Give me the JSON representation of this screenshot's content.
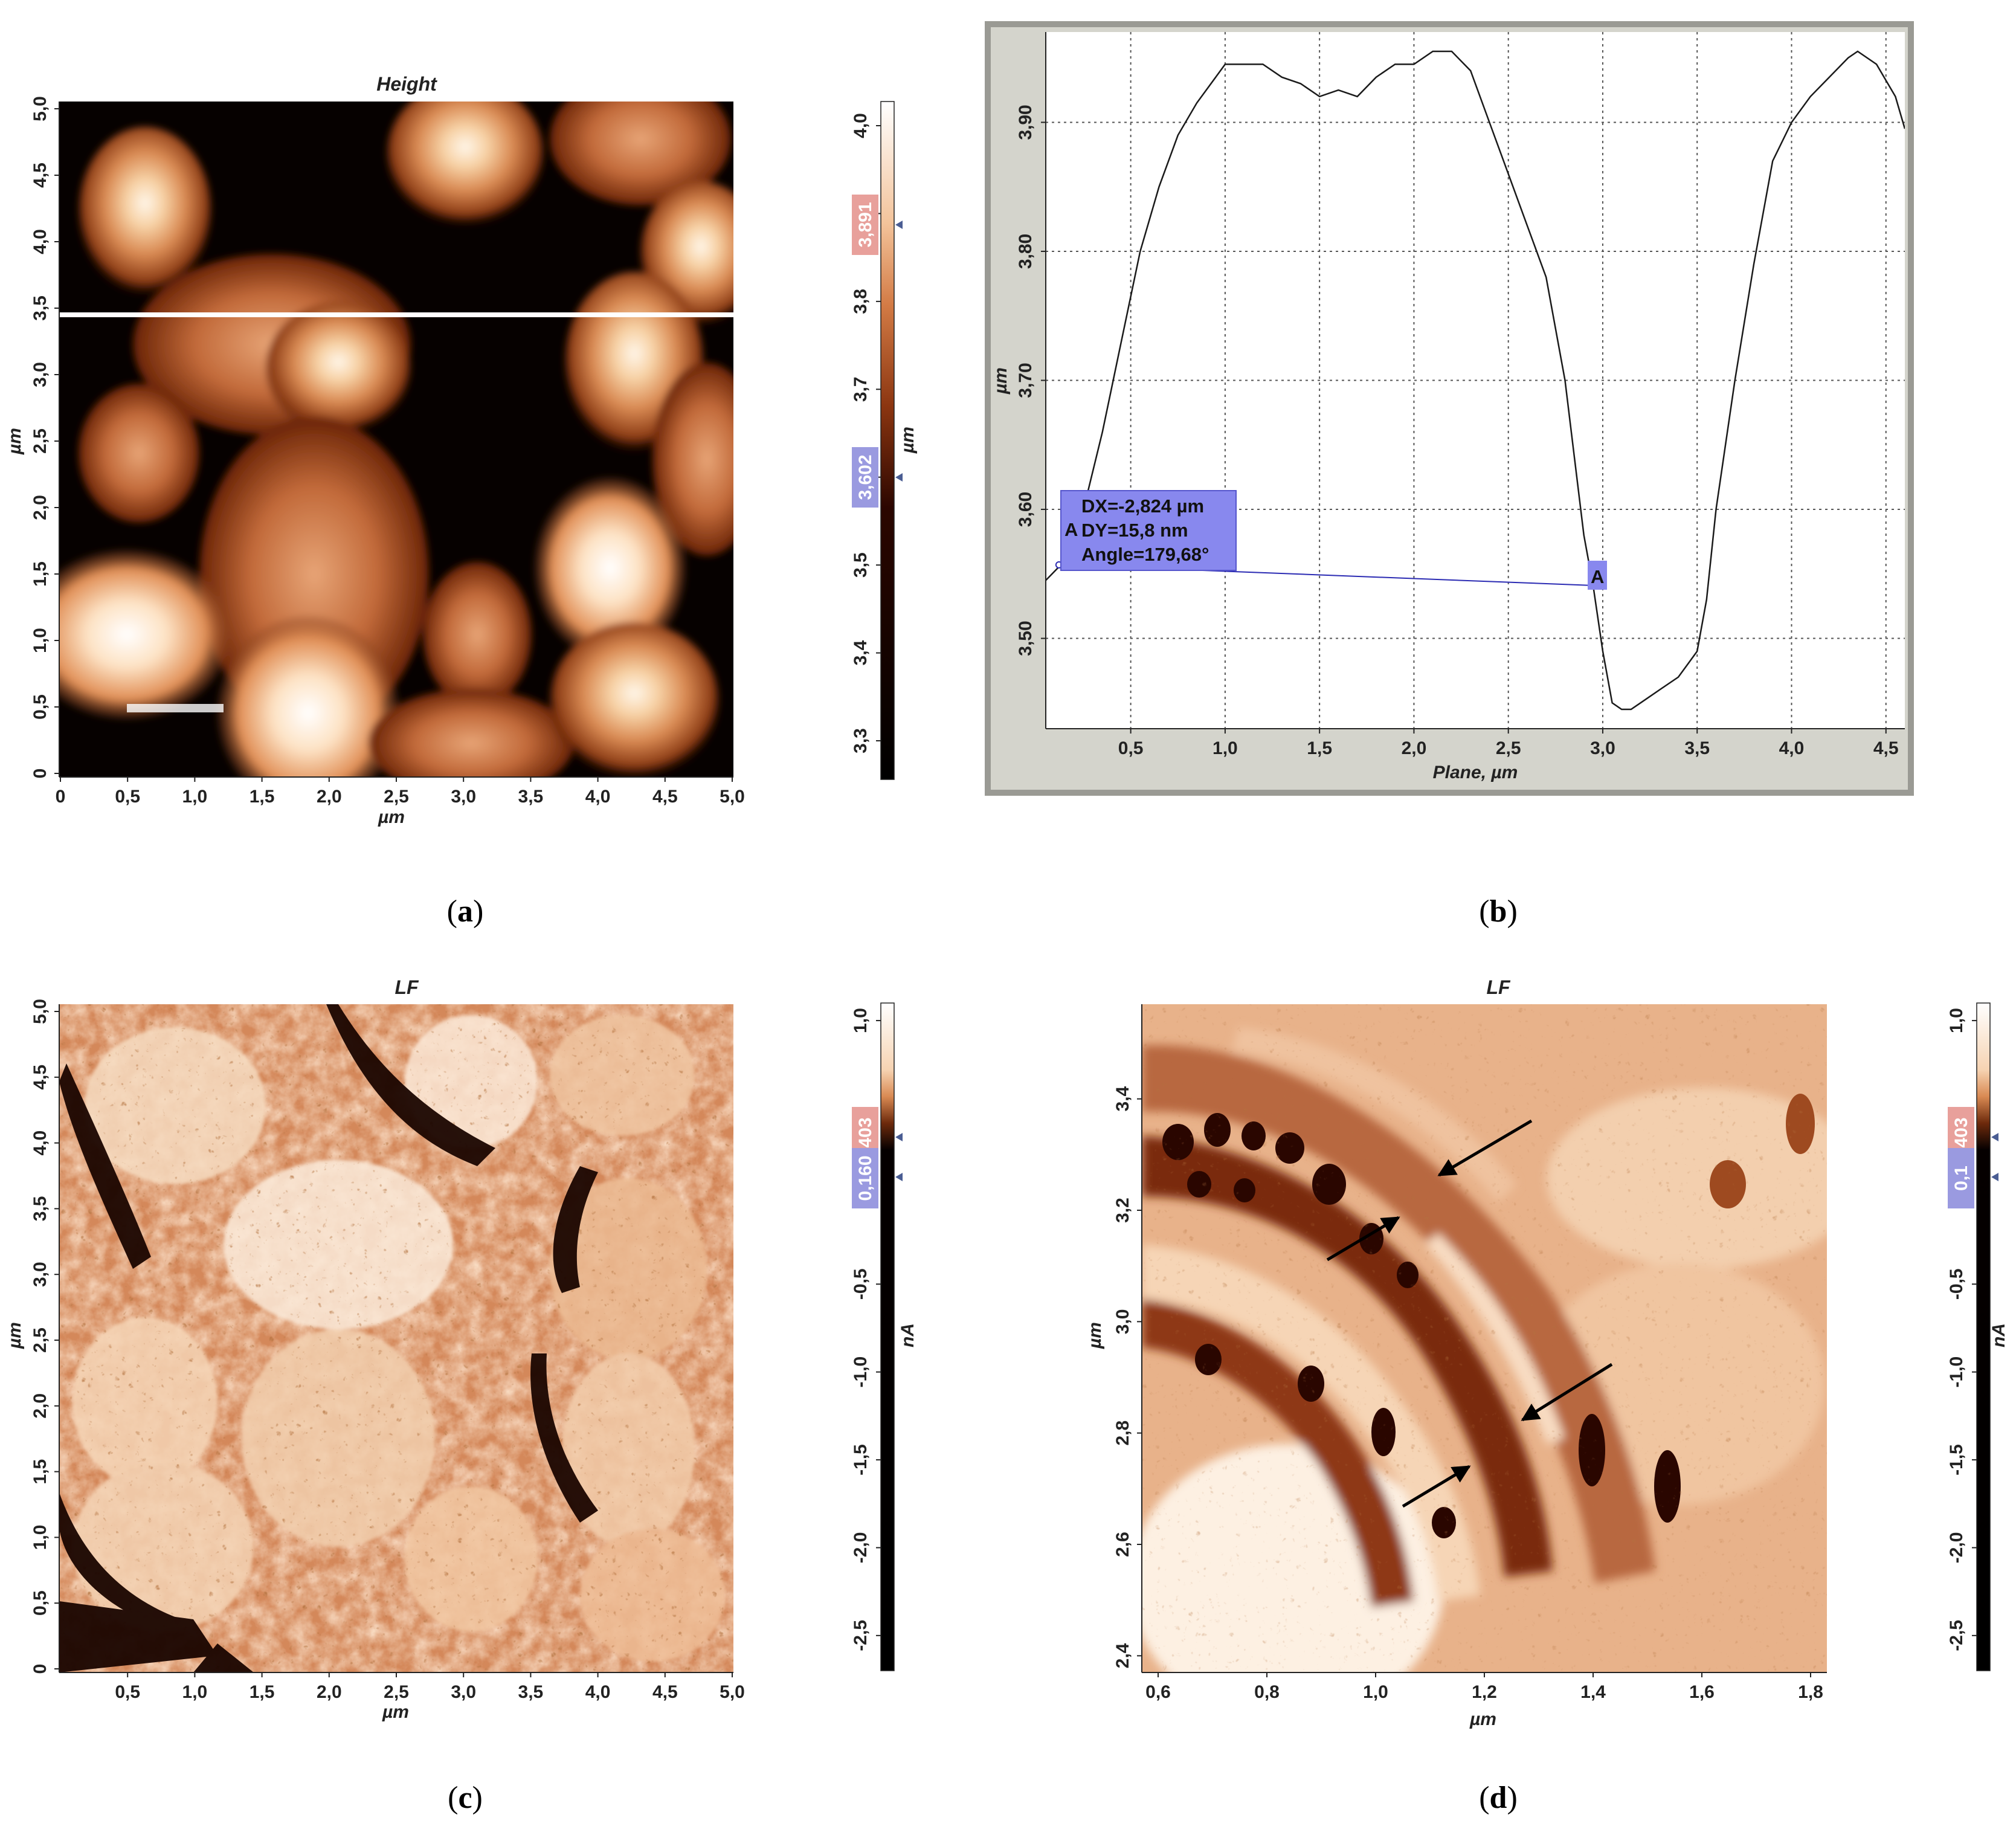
{
  "panel_a": {
    "title": "Height",
    "x_unit": "µm",
    "y_unit": "µm",
    "x_ticks": [
      "0",
      "0,5",
      "1,0",
      "1,5",
      "2,0",
      "2,5",
      "3,0",
      "3,5",
      "4,0",
      "4,5",
      "5,0"
    ],
    "y_ticks": [
      "0",
      "0,5",
      "1,0",
      "1,5",
      "2,0",
      "2,5",
      "3,0",
      "3,5",
      "4,0",
      "4,5",
      "5,0"
    ],
    "colorbar_ticks": [
      "3,3",
      "3,4",
      "3,5",
      "3,6",
      "3,7",
      "3,8",
      "3,9",
      "4,0"
    ],
    "colorbar_unit": "µm",
    "marker_high": "3,891",
    "marker_low": "3,602",
    "profile_line_y": 3.45,
    "caption": "a"
  },
  "panel_b": {
    "xlabel": "Plane, µm",
    "ylabel": "µm",
    "x_ticks": [
      "0,5",
      "1,0",
      "1,5",
      "2,0",
      "2,5",
      "3,0",
      "3,5",
      "4,0",
      "4,5"
    ],
    "y_ticks": [
      "3,50",
      "3,60",
      "3,70",
      "3,80",
      "3,90"
    ],
    "measure": {
      "dx": "DX=-2,824 µm",
      "dy": "DY=15,8 nm",
      "angle": "Angle=179,68°",
      "point_label": "A",
      "x1": 0.12,
      "y1": 3.557,
      "x2": 2.95,
      "y2": 3.541
    },
    "caption": "b"
  },
  "panel_c": {
    "title": "LF",
    "x_unit": "µm",
    "y_unit": "µm",
    "x_ticks": [
      "0,5",
      "1,0",
      "1,5",
      "2,0",
      "2,5",
      "3,0",
      "3,5",
      "4,0",
      "4,5",
      "5,0"
    ],
    "y_ticks": [
      "0",
      "0,5",
      "1,0",
      "1,5",
      "2,0",
      "2,5",
      "3,0",
      "3,5",
      "4,0",
      "4,5",
      "5,0"
    ],
    "colorbar_ticks": [
      "-2,5",
      "-2,0",
      "-1,5",
      "-1,0",
      "-0,5",
      "1,0"
    ],
    "colorbar_unit": "nA",
    "marker_high": "0,403",
    "marker_low": "0,160",
    "caption": "c"
  },
  "panel_d": {
    "title": "LF",
    "x_unit": "µm",
    "y_unit": "µm",
    "x_ticks": [
      "0,6",
      "0,8",
      "1,0",
      "1,2",
      "1,4",
      "1,6",
      "1,8"
    ],
    "y_ticks": [
      "2,4",
      "2,6",
      "2,8",
      "3,0",
      "3,2",
      "3,4"
    ],
    "colorbar_ticks": [
      "-2,5",
      "-2,0",
      "-1,5",
      "-1,0",
      "-0,5",
      "1,0"
    ],
    "colorbar_unit": "nA",
    "marker_high": "0,403",
    "marker_low": "0,1",
    "caption": "d"
  },
  "chart_data": {
    "type": "line",
    "xlabel": "Plane, µm",
    "ylabel": "µm",
    "xlim": [
      0.05,
      4.6
    ],
    "ylim": [
      3.43,
      3.97
    ],
    "grid": true,
    "series": [
      {
        "x": [
          0.05,
          0.15,
          0.25,
          0.35,
          0.45,
          0.55,
          0.65,
          0.75,
          0.85,
          0.95,
          1.0,
          1.1,
          1.2,
          1.3,
          1.4,
          1.5,
          1.6,
          1.7,
          1.8,
          1.9,
          2.0,
          2.1,
          2.2,
          2.3,
          2.4,
          2.5,
          2.6,
          2.7,
          2.8,
          2.85,
          2.9,
          2.95,
          3.0,
          3.05,
          3.1,
          3.15,
          3.2,
          3.3,
          3.4,
          3.5,
          3.55,
          3.6,
          3.7,
          3.8,
          3.9,
          4.0,
          4.1,
          4.2,
          4.3,
          4.35,
          4.45,
          4.55,
          4.6
        ],
        "y": [
          3.545,
          3.56,
          3.6,
          3.66,
          3.73,
          3.8,
          3.85,
          3.89,
          3.915,
          3.935,
          3.945,
          3.945,
          3.945,
          3.935,
          3.93,
          3.92,
          3.925,
          3.92,
          3.935,
          3.945,
          3.945,
          3.955,
          3.955,
          3.94,
          3.9,
          3.86,
          3.82,
          3.78,
          3.7,
          3.64,
          3.58,
          3.54,
          3.49,
          3.45,
          3.445,
          3.445,
          3.45,
          3.46,
          3.47,
          3.49,
          3.53,
          3.6,
          3.7,
          3.79,
          3.87,
          3.9,
          3.92,
          3.935,
          3.95,
          3.955,
          3.945,
          3.92,
          3.895
        ]
      }
    ]
  }
}
